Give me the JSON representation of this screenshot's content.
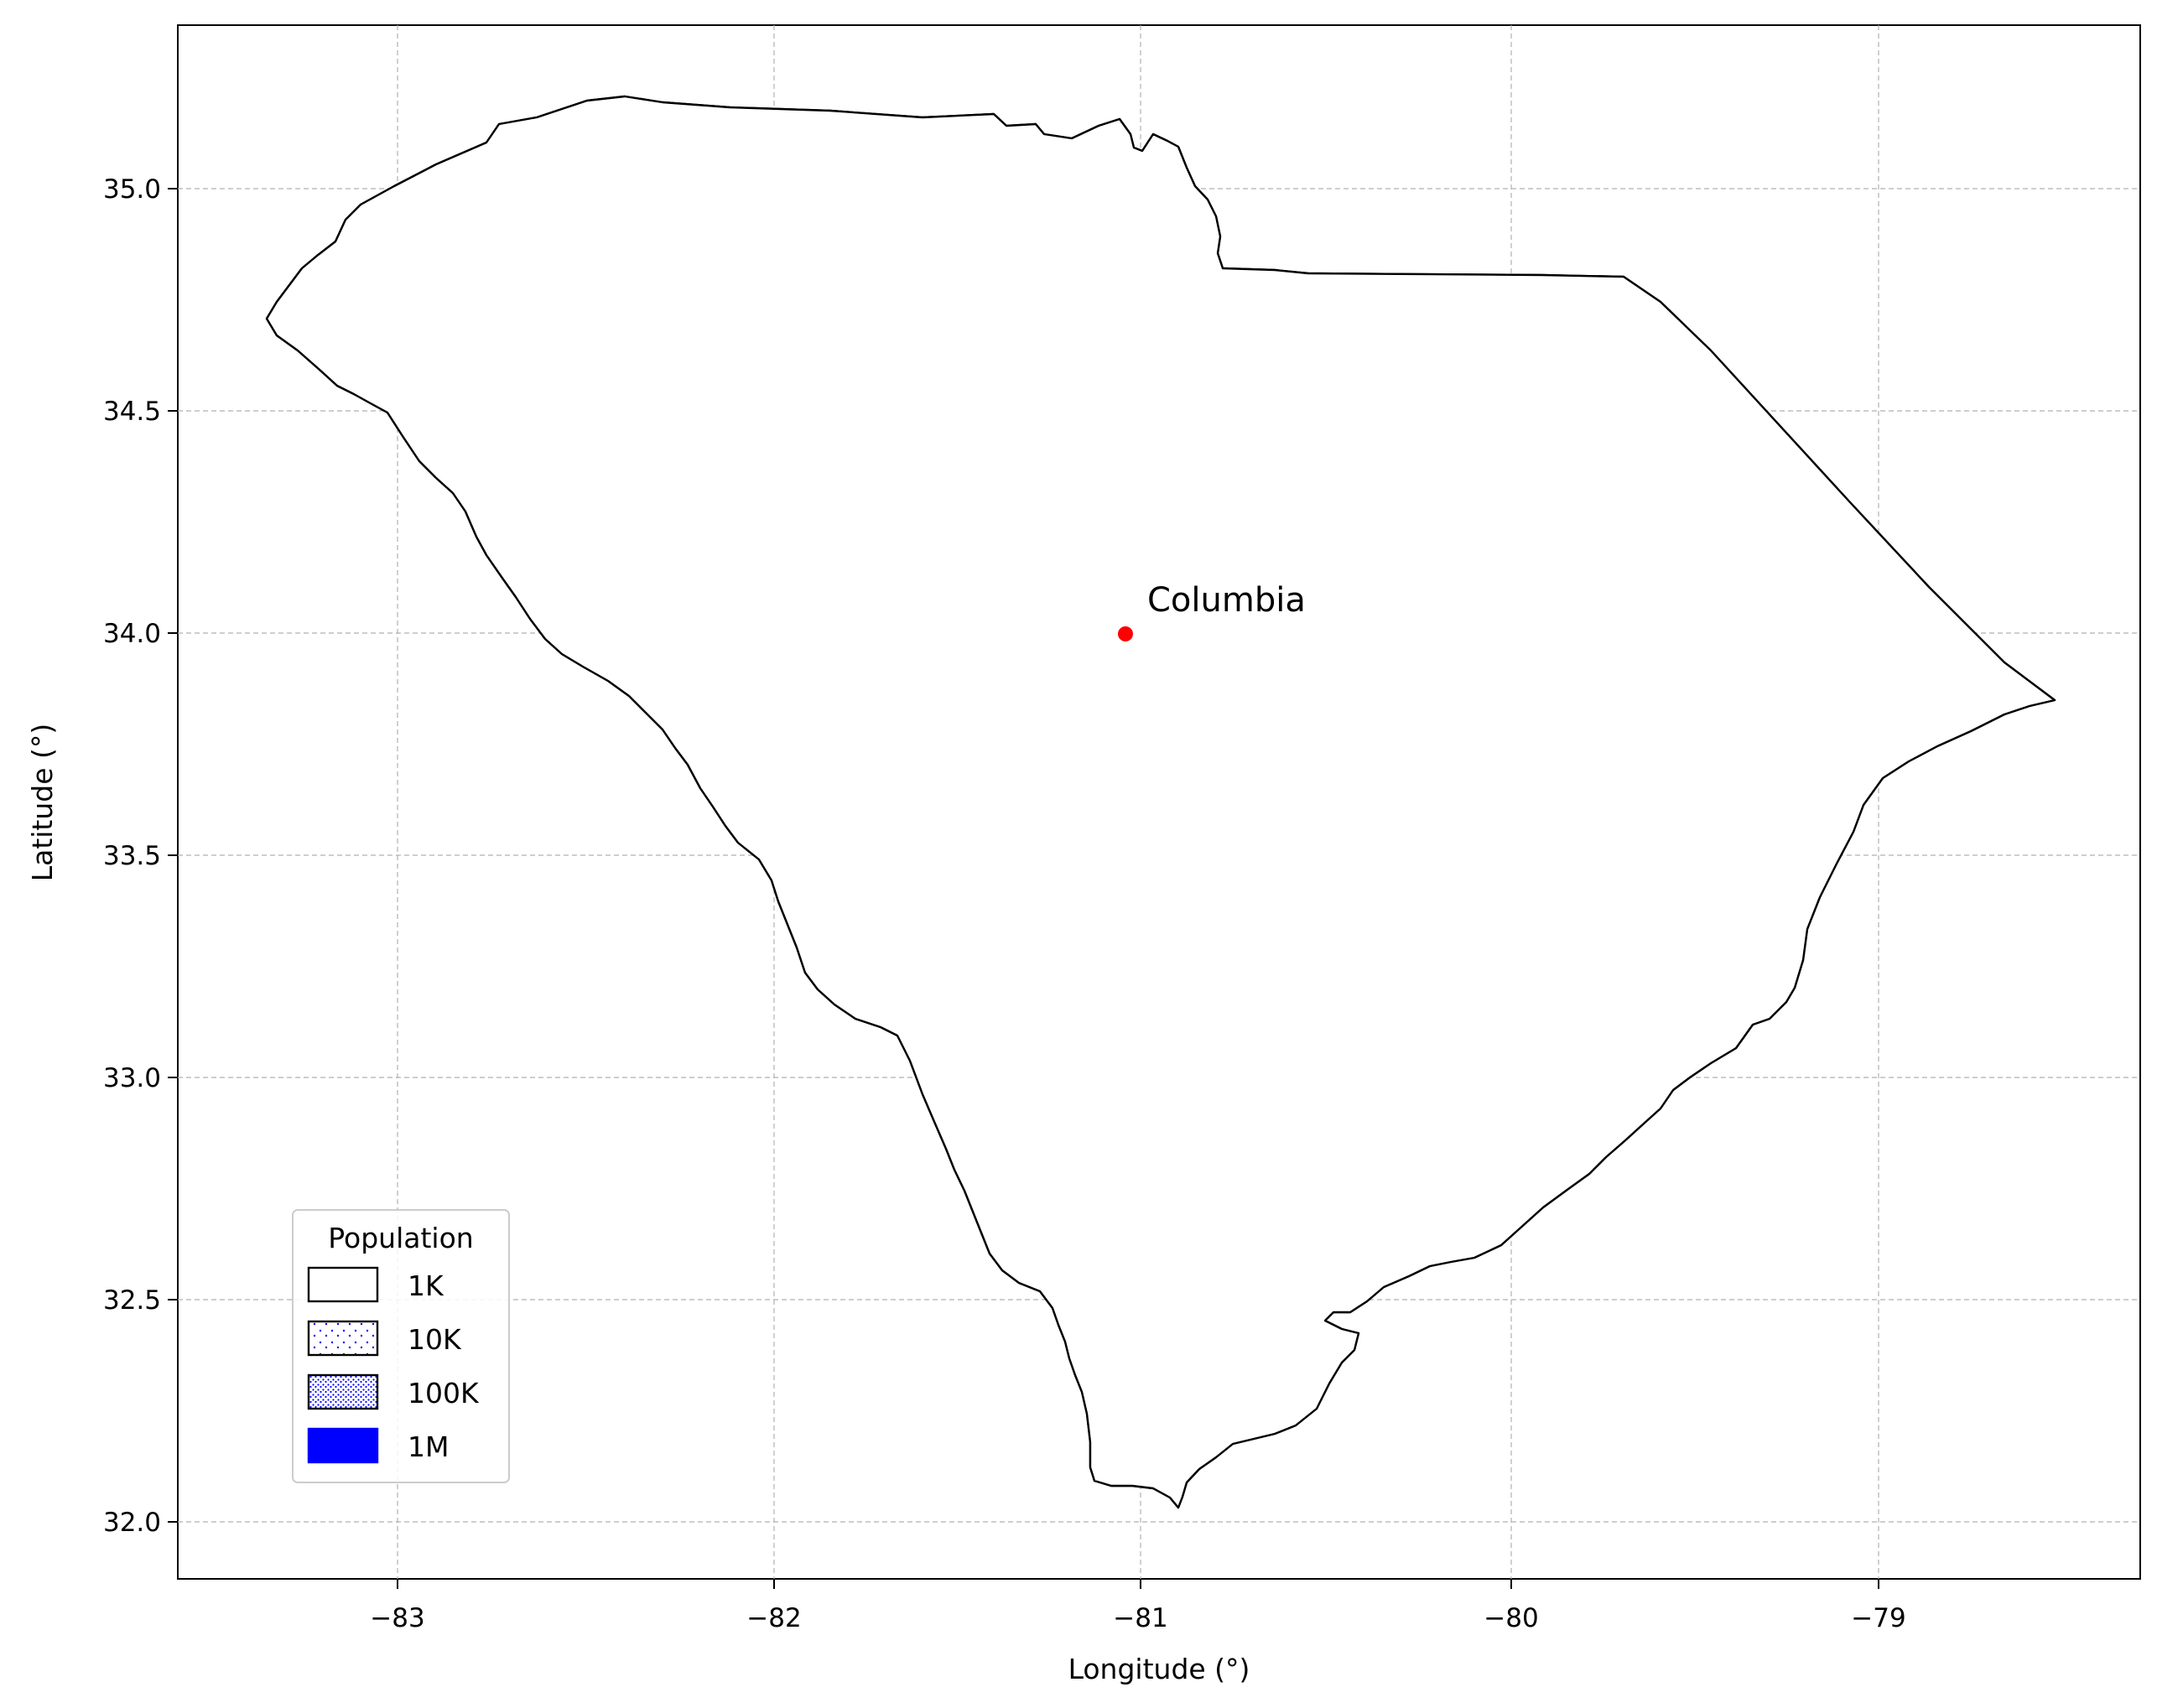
{
  "map": {
    "label_city": "Columbia",
    "xlabel": "Longitude (°)",
    "ylabel": "Latitude (°)",
    "x_ticks": [
      "−83",
      "−82",
      "−81",
      "−80",
      "−79"
    ],
    "y_ticks": [
      "32.0",
      "32.5",
      "33.0",
      "33.5",
      "34.0",
      "34.5",
      "35.0"
    ],
    "legend": {
      "title": "Population",
      "items": [
        {
          "label": "1K",
          "style": "empty"
        },
        {
          "label": "10K",
          "style": "sparse"
        },
        {
          "label": "100K",
          "style": "dense"
        },
        {
          "label": "1M",
          "style": "solid"
        }
      ]
    },
    "colors": {
      "dot": "#0000ff",
      "city": "#ff0000",
      "border": "#000000",
      "grid": "#b0b0b0"
    }
  },
  "chart_data": {
    "type": "scatter",
    "subtype": "dot-density map",
    "xlabel": "Longitude (°)",
    "ylabel": "Latitude (°)",
    "xlim": [
      -83.6,
      -78.35
    ],
    "ylim": [
      31.88,
      35.38
    ],
    "x_ticks": [
      -83,
      -82,
      -81,
      -80,
      -79
    ],
    "y_ticks": [
      32.0,
      32.5,
      33.0,
      33.5,
      34.0,
      34.5,
      35.0
    ],
    "grid": true,
    "legend_position": "lower-left",
    "points": [
      {
        "name": "Columbia",
        "lon": -81.04,
        "lat": 34.0
      }
    ]
  }
}
